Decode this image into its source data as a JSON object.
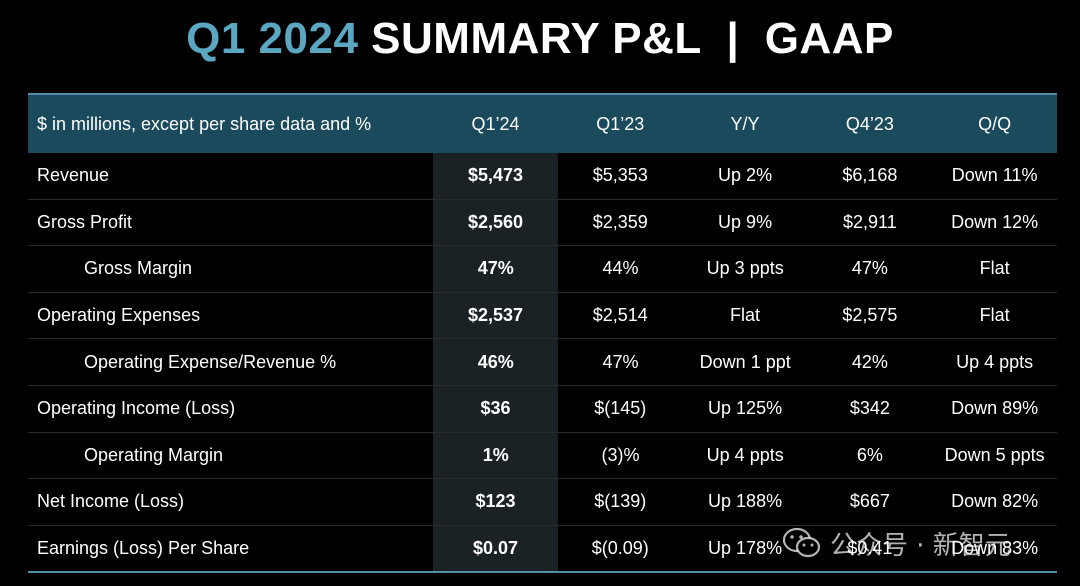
{
  "title": {
    "accent": "Q1 2024",
    "rest": " SUMMARY P&L  |  GAAP"
  },
  "table": {
    "headers": [
      "$ in millions, except per share data and %",
      "Q1’24",
      "Q1’23",
      "Y/Y",
      "Q4’23",
      "Q/Q"
    ],
    "rows": [
      {
        "label": "Revenue",
        "indent": false,
        "values": [
          "$5,473",
          "$5,353",
          "Up 2%",
          "$6,168",
          "Down 11%"
        ]
      },
      {
        "label": "Gross Profit",
        "indent": false,
        "values": [
          "$2,560",
          "$2,359",
          "Up 9%",
          "$2,911",
          "Down 12%"
        ]
      },
      {
        "label": "Gross Margin",
        "indent": true,
        "values": [
          "47%",
          "44%",
          "Up 3 ppts",
          "47%",
          "Flat"
        ]
      },
      {
        "label": "Operating Expenses",
        "indent": false,
        "values": [
          "$2,537",
          "$2,514",
          "Flat",
          "$2,575",
          "Flat"
        ]
      },
      {
        "label": "Operating Expense/Revenue %",
        "indent": true,
        "values": [
          "46%",
          "47%",
          "Down 1 ppt",
          "42%",
          "Up 4 ppts"
        ]
      },
      {
        "label": "Operating Income (Loss)",
        "indent": false,
        "values": [
          "$36",
          "$(145)",
          "Up 125%",
          "$342",
          "Down 89%"
        ]
      },
      {
        "label": "Operating Margin",
        "indent": true,
        "values": [
          "1%",
          "(3)%",
          "Up 4 ppts",
          "6%",
          "Down 5 ppts"
        ]
      },
      {
        "label": "Net Income (Loss)",
        "indent": false,
        "values": [
          "$123",
          "$(139)",
          "Up 188%",
          "$667",
          "Down 82%"
        ]
      },
      {
        "label": "Earnings (Loss) Per Share",
        "indent": false,
        "values": [
          "$0.07",
          "$(0.09)",
          "Up 178%",
          "$0.41",
          "Down 83%"
        ]
      }
    ]
  },
  "watermark": {
    "text": "公众号 · 新智元",
    "icon": "wechat-logo-icon"
  },
  "colors": {
    "accent": "#5ba6c0",
    "header_bg": "#1a4a5c",
    "border": "#4f90a8",
    "highlight_col": "#1a2226"
  }
}
